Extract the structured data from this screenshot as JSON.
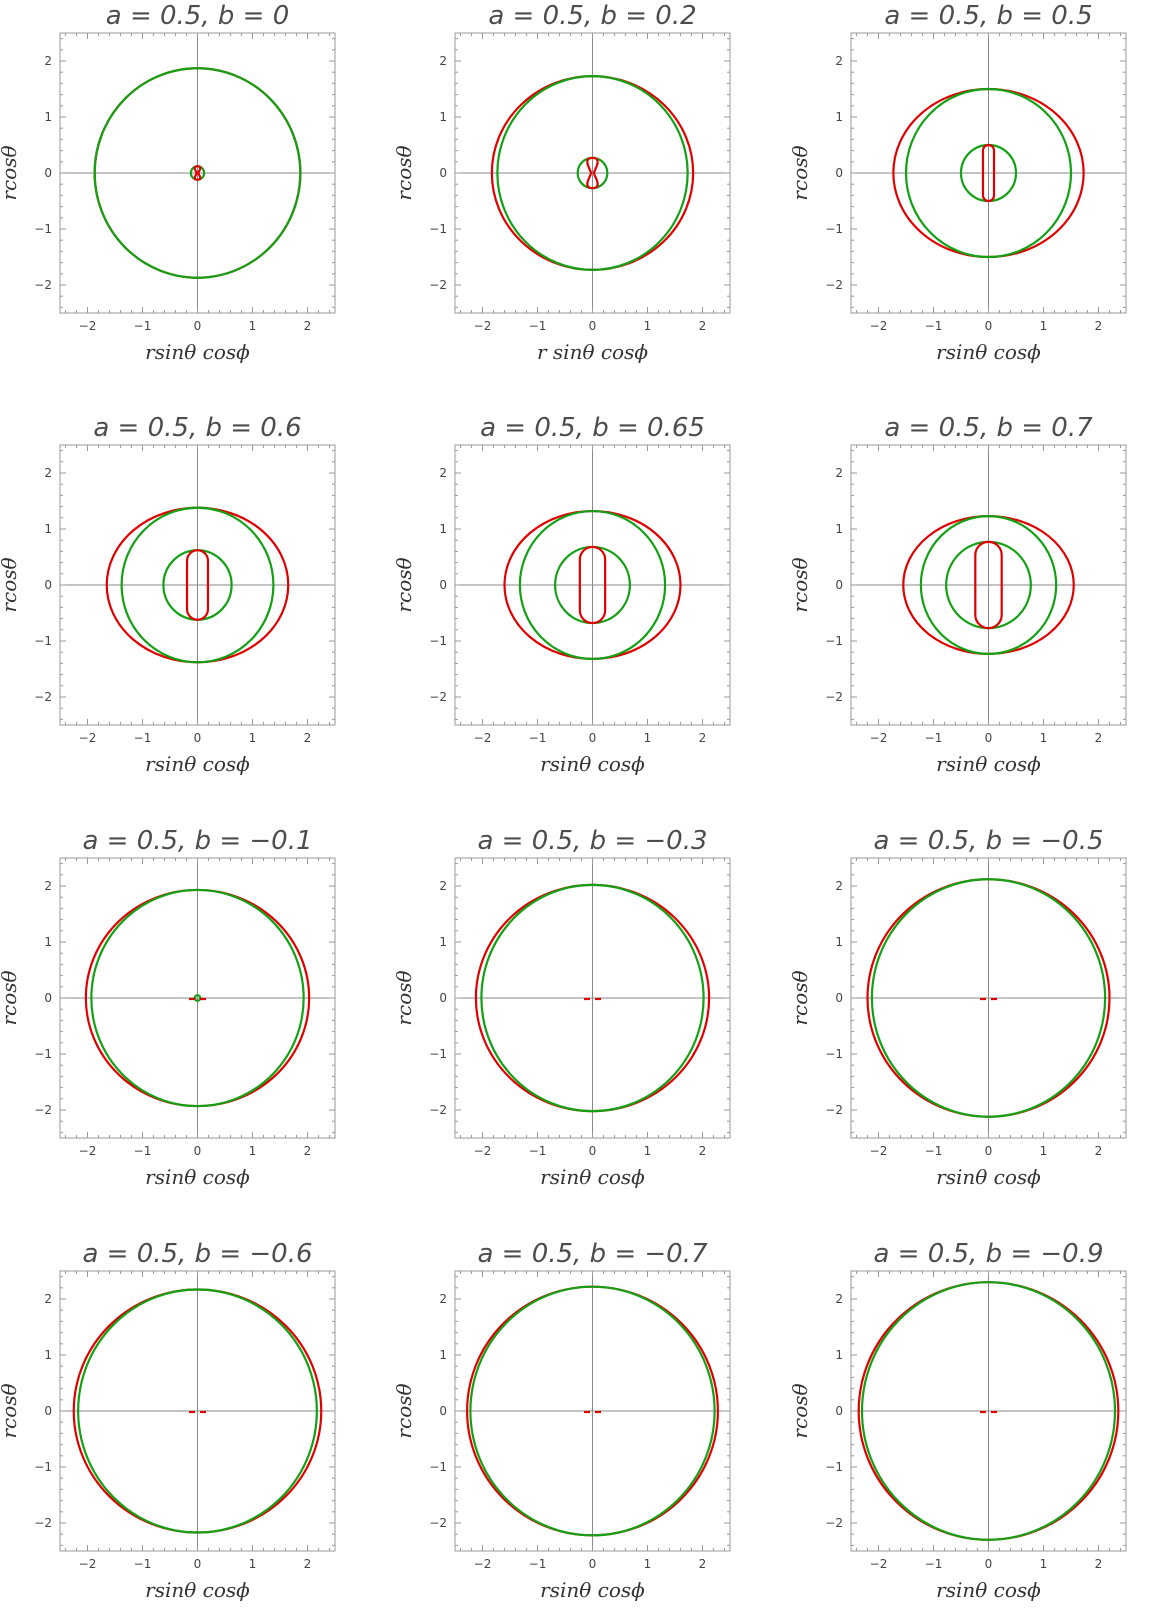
{
  "colors": {
    "red_curve": "#e00000",
    "green_curve": "#14a014",
    "frame": "#9a9a9a",
    "axes": "#8a8a8a"
  },
  "chart_data": [
    {
      "type": "line",
      "title": "a = 0.5, b = 0",
      "xlabel": "rsinθ cosϕ",
      "ylabel": "rcosθ",
      "xlim": [
        -2.5,
        2.5
      ],
      "ylim": [
        -2.5,
        2.5
      ],
      "xticks": [
        -2,
        -1,
        0,
        1,
        2
      ],
      "yticks": [
        -2,
        -1,
        0,
        1,
        2
      ],
      "outer": {
        "rx": 1.87,
        "ry": 1.87,
        "green_r": 1.87
      },
      "inner": {
        "type": "pinch",
        "green_r": 0.12,
        "width": 0.07,
        "height": 0.12
      }
    },
    {
      "type": "line",
      "title": "a = 0.5, b = 0.2",
      "xlabel": "r sinθ cosϕ",
      "ylabel": "rcosθ",
      "xlim": [
        -2.5,
        2.5
      ],
      "ylim": [
        -2.5,
        2.5
      ],
      "xticks": [
        -2,
        -1,
        0,
        1,
        2
      ],
      "yticks": [
        -2,
        -1,
        0,
        1,
        2
      ],
      "outer": {
        "rx": 1.83,
        "ry": 1.73,
        "green_r": 1.73
      },
      "inner": {
        "type": "pinch",
        "green_r": 0.27,
        "width": 0.13,
        "height": 0.27
      }
    },
    {
      "type": "line",
      "title": "a = 0.5, b = 0.5",
      "xlabel": "rsinθ cosϕ",
      "ylabel": "rcosθ",
      "xlim": [
        -2.5,
        2.5
      ],
      "ylim": [
        -2.5,
        2.5
      ],
      "xticks": [
        -2,
        -1,
        0,
        1,
        2
      ],
      "yticks": [
        -2,
        -1,
        0,
        1,
        2
      ],
      "outer": {
        "rx": 1.73,
        "ry": 1.5,
        "green_r": 1.5
      },
      "inner": {
        "type": "capsule",
        "green_r": 0.5,
        "width": 0.2,
        "height": 0.5
      }
    },
    {
      "type": "line",
      "title": "a = 0.5, b = 0.6",
      "xlabel": "rsinθ cosϕ",
      "ylabel": "rcosθ",
      "xlim": [
        -2.5,
        2.5
      ],
      "ylim": [
        -2.5,
        2.5
      ],
      "xticks": [
        -2,
        -1,
        0,
        1,
        2
      ],
      "yticks": [
        -2,
        -1,
        0,
        1,
        2
      ],
      "outer": {
        "rx": 1.65,
        "ry": 1.38,
        "green_r": 1.38
      },
      "inner": {
        "type": "capsule",
        "green_r": 0.62,
        "width": 0.38,
        "height": 0.62
      }
    },
    {
      "type": "line",
      "title": "a = 0.5, b = 0.65",
      "xlabel": "rsinθ cosϕ",
      "ylabel": "rcosθ",
      "xlim": [
        -2.5,
        2.5
      ],
      "ylim": [
        -2.5,
        2.5
      ],
      "xticks": [
        -2,
        -1,
        0,
        1,
        2
      ],
      "yticks": [
        -2,
        -1,
        0,
        1,
        2
      ],
      "outer": {
        "rx": 1.6,
        "ry": 1.32,
        "green_r": 1.32
      },
      "inner": {
        "type": "capsule",
        "green_r": 0.68,
        "width": 0.46,
        "height": 0.68
      }
    },
    {
      "type": "line",
      "title": "a = 0.5, b = 0.7",
      "xlabel": "rsinθ cosϕ",
      "ylabel": "rcosθ",
      "xlim": [
        -2.5,
        2.5
      ],
      "ylim": [
        -2.5,
        2.5
      ],
      "xticks": [
        -2,
        -1,
        0,
        1,
        2
      ],
      "yticks": [
        -2,
        -1,
        0,
        1,
        2
      ],
      "outer": {
        "rx": 1.55,
        "ry": 1.23,
        "green_r": 1.23
      },
      "inner": {
        "type": "capsule",
        "green_r": 0.77,
        "width": 0.48,
        "height": 0.77
      }
    },
    {
      "type": "line",
      "title": "a = 0.5, b = −0.1",
      "xlabel": "rsinθ cosϕ",
      "ylabel": "rcosθ",
      "xlim": [
        -2.5,
        2.5
      ],
      "ylim": [
        -2.5,
        2.5
      ],
      "xticks": [
        -2,
        -1,
        0,
        1,
        2
      ],
      "yticks": [
        -2,
        -1,
        0,
        1,
        2
      ],
      "outer": {
        "rx": 2.03,
        "ry": 1.93,
        "green_r": 1.93
      },
      "inner": {
        "type": "tiny",
        "green_r": 0.05,
        "dot_x": 0.1
      }
    },
    {
      "type": "line",
      "title": "a = 0.5, b = −0.3",
      "xlabel": "rsinθ cosϕ",
      "ylabel": "rcosθ",
      "xlim": [
        -2.5,
        2.5
      ],
      "ylim": [
        -2.5,
        2.5
      ],
      "xticks": [
        -2,
        -1,
        0,
        1,
        2
      ],
      "yticks": [
        -2,
        -1,
        0,
        1,
        2
      ],
      "outer": {
        "rx": 2.12,
        "ry": 2.02,
        "green_r": 2.02
      },
      "inner": {
        "type": "dots",
        "dot_x": 0.1
      }
    },
    {
      "type": "line",
      "title": "a = 0.5, b = −0.5",
      "xlabel": "rsinθ cosϕ",
      "ylabel": "rcosθ",
      "xlim": [
        -2.5,
        2.5
      ],
      "ylim": [
        -2.5,
        2.5
      ],
      "xticks": [
        -2,
        -1,
        0,
        1,
        2
      ],
      "yticks": [
        -2,
        -1,
        0,
        1,
        2
      ],
      "outer": {
        "rx": 2.2,
        "ry": 2.12,
        "green_r": 2.12
      },
      "inner": {
        "type": "dots",
        "dot_x": 0.1
      }
    },
    {
      "type": "line",
      "title": "a = 0.5, b = −0.6",
      "xlabel": "rsinθ cosϕ",
      "ylabel": "rcosθ",
      "xlim": [
        -2.5,
        2.5
      ],
      "ylim": [
        -2.5,
        2.5
      ],
      "xticks": [
        -2,
        -1,
        0,
        1,
        2
      ],
      "yticks": [
        -2,
        -1,
        0,
        1,
        2
      ],
      "outer": {
        "rx": 2.25,
        "ry": 2.17,
        "green_r": 2.17
      },
      "inner": {
        "type": "dots",
        "dot_x": 0.1
      }
    },
    {
      "type": "line",
      "title": "a = 0.5, b = −0.7",
      "xlabel": "rsinθ cosϕ",
      "ylabel": "rcosθ",
      "xlim": [
        -2.5,
        2.5
      ],
      "ylim": [
        -2.5,
        2.5
      ],
      "xticks": [
        -2,
        -1,
        0,
        1,
        2
      ],
      "yticks": [
        -2,
        -1,
        0,
        1,
        2
      ],
      "outer": {
        "rx": 2.28,
        "ry": 2.22,
        "green_r": 2.22
      },
      "inner": {
        "type": "dots",
        "dot_x": 0.1
      }
    },
    {
      "type": "line",
      "title": "a = 0.5, b = −0.9",
      "xlabel": "rsinθ cosϕ",
      "ylabel": "rcosθ",
      "xlim": [
        -2.5,
        2.5
      ],
      "ylim": [
        -2.5,
        2.5
      ],
      "xticks": [
        -2,
        -1,
        0,
        1,
        2
      ],
      "yticks": [
        -2,
        -1,
        0,
        1,
        2
      ],
      "outer": {
        "rx": 2.36,
        "ry": 2.3,
        "green_r": 2.3
      },
      "inner": {
        "type": "dots",
        "dot_x": 0.1
      }
    }
  ]
}
